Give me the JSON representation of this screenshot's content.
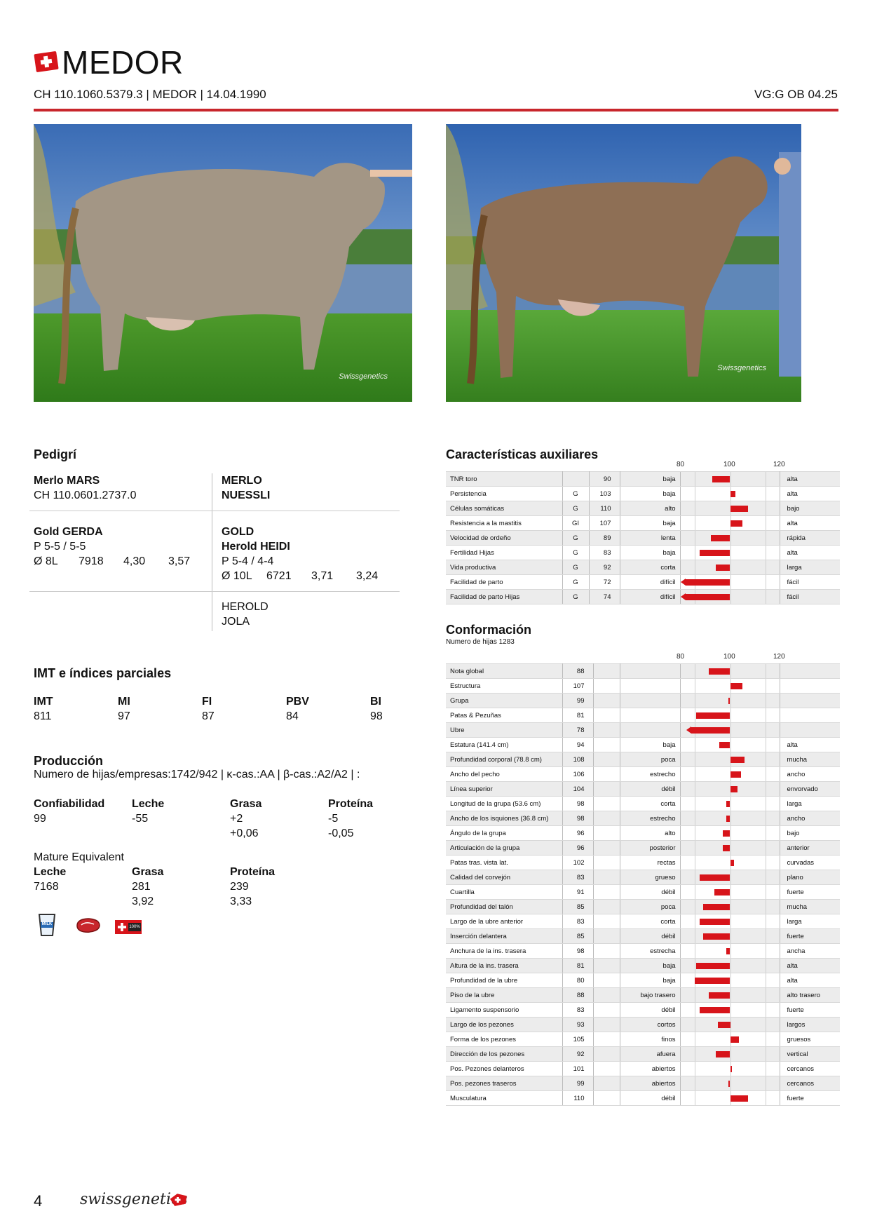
{
  "header": {
    "name": "MEDOR",
    "id_line": "CH 110.1060.5379.3 | MEDOR | 14.04.1990",
    "vg": "VG:G OB 04.25"
  },
  "photos": [
    {
      "watermark": "Swissgenetics"
    },
    {
      "watermark": "Swissgenetics"
    }
  ],
  "pedigree": {
    "title": "Pedigrí",
    "sire": {
      "name": "Merlo MARS",
      "id": "CH 110.0601.2737.0"
    },
    "sire_sire": {
      "line1": "MERLO",
      "line2": "NUESSLI"
    },
    "dam": {
      "name": "Gold GERDA",
      "score": "P 5-5 / 5-5",
      "lact": "Ø 8L",
      "milk": "7918",
      "fat": "4,30",
      "protein": "3,57"
    },
    "dam_sire": {
      "line1": "GOLD",
      "line2": "Herold HEIDI",
      "score": "P 5-4 / 4-4",
      "lact": "Ø 10L",
      "milk": "6721",
      "fat": "3,71",
      "protein": "3,24"
    },
    "dam_dam": {
      "line1": "HEROLD",
      "line2": "JOLA"
    }
  },
  "imt": {
    "title": "IMT e índices parciales",
    "items": [
      {
        "label": "IMT",
        "value": "811"
      },
      {
        "label": "MI",
        "value": "97"
      },
      {
        "label": "FI",
        "value": "87"
      },
      {
        "label": "PBV",
        "value": "84"
      },
      {
        "label": "BI",
        "value": "98"
      }
    ]
  },
  "production": {
    "title": "Producción",
    "subtitle": "Numero de hijas/empresas:1742/942 | κ-cas.:AA | β-cas.:A2/A2 | :",
    "headers": [
      "Confiabilidad",
      "Leche",
      "Grasa",
      "Proteína"
    ],
    "row1": [
      "99",
      "-55",
      "+2",
      "-5"
    ],
    "row2": [
      "",
      "",
      "+0,06",
      "-0,05"
    ],
    "mature_title": "Mature Equivalent",
    "mature_headers": [
      "Leche",
      "Grasa",
      "Proteína"
    ],
    "mature_row1": [
      "7168",
      "281",
      "239"
    ],
    "mature_row2": [
      "",
      "3,92",
      "3,33"
    ],
    "icon_milk_label": "MILK",
    "icon_swiss_label": "100%"
  },
  "aux": {
    "title": "Características auxiliares",
    "scale": [
      "80",
      "100",
      "120"
    ],
    "rows": [
      {
        "label": "TNR toro",
        "g": "",
        "value": 90,
        "low": "baja",
        "high": "alta"
      },
      {
        "label": "Persistencia",
        "g": "G",
        "value": 103,
        "low": "baja",
        "high": "alta"
      },
      {
        "label": "Células somáticas",
        "g": "G",
        "value": 110,
        "low": "alto",
        "high": "bajo"
      },
      {
        "label": "Resistencia a la mastitis",
        "g": "GI",
        "value": 107,
        "low": "baja",
        "high": "alta"
      },
      {
        "label": "Velocidad de ordeño",
        "g": "G",
        "value": 89,
        "low": "lenta",
        "high": "rápida"
      },
      {
        "label": "Fertilidad Hijas",
        "g": "G",
        "value": 83,
        "low": "baja",
        "high": "alta"
      },
      {
        "label": "Vida productiva",
        "g": "G",
        "value": 92,
        "low": "corta",
        "high": "larga"
      },
      {
        "label": "Facilidad de parto",
        "g": "G",
        "value": 72,
        "low": "difícil",
        "high": "fácil"
      },
      {
        "label": "Facilidad de parto Hijas",
        "g": "G",
        "value": 74,
        "low": "difícil",
        "high": "fácil"
      }
    ]
  },
  "conf": {
    "title": "Conformación",
    "subtitle": "Numero de hijas 1283",
    "scale": [
      "80",
      "100",
      "120"
    ],
    "rows": [
      {
        "label": "Nota global",
        "value": 88,
        "low": "",
        "high": ""
      },
      {
        "label": "Estructura",
        "value": 107,
        "low": "",
        "high": ""
      },
      {
        "label": "Grupa",
        "value": 99,
        "low": "",
        "high": ""
      },
      {
        "label": "Patas & Pezuñas",
        "value": 81,
        "low": "",
        "high": ""
      },
      {
        "label": "Ubre",
        "value": 78,
        "low": "",
        "high": ""
      },
      {
        "label": "Estatura (141.4 cm)",
        "value": 94,
        "low": "baja",
        "high": "alta"
      },
      {
        "label": "Profundidad corporal (78.8 cm)",
        "value": 108,
        "low": "poca",
        "high": "mucha"
      },
      {
        "label": "Ancho del pecho",
        "value": 106,
        "low": "estrecho",
        "high": "ancho"
      },
      {
        "label": "Línea superior",
        "value": 104,
        "low": "débil",
        "high": "envorvado"
      },
      {
        "label": "Longitud de la grupa (53.6 cm)",
        "value": 98,
        "low": "corta",
        "high": "larga"
      },
      {
        "label": "Ancho de los isquiones (36.8 cm)",
        "value": 98,
        "low": "estrecho",
        "high": "ancho"
      },
      {
        "label": "Ángulo de la grupa",
        "value": 96,
        "low": "alto",
        "high": "bajo"
      },
      {
        "label": "Articulación de la grupa",
        "value": 96,
        "low": "posterior",
        "high": "anterior"
      },
      {
        "label": "Patas tras. vista lat.",
        "value": 102,
        "low": "rectas",
        "high": "curvadas"
      },
      {
        "label": "Calidad del corvejón",
        "value": 83,
        "low": "grueso",
        "high": "plano"
      },
      {
        "label": "Cuartilla",
        "value": 91,
        "low": "débil",
        "high": "fuerte"
      },
      {
        "label": "Profundidad del talón",
        "value": 85,
        "low": "poca",
        "high": "mucha"
      },
      {
        "label": "Largo de la ubre anterior",
        "value": 83,
        "low": "corta",
        "high": "larga"
      },
      {
        "label": "Inserción delantera",
        "value": 85,
        "low": "débil",
        "high": "fuerte"
      },
      {
        "label": "Anchura de la ins. trasera",
        "value": 98,
        "low": "estrecha",
        "high": "ancha"
      },
      {
        "label": "Altura de la ins. trasera",
        "value": 81,
        "low": "baja",
        "high": "alta"
      },
      {
        "label": "Profundidad de la ubre",
        "value": 80,
        "low": "baja",
        "high": "alta"
      },
      {
        "label": "Piso de la ubre",
        "value": 88,
        "low": "bajo trasero",
        "high": "alto trasero"
      },
      {
        "label": "Ligamento suspensorio",
        "value": 83,
        "low": "débil",
        "high": "fuerte"
      },
      {
        "label": "Largo de los pezones",
        "value": 93,
        "low": "cortos",
        "high": "largos"
      },
      {
        "label": "Forma de los pezones",
        "value": 105,
        "low": "finos",
        "high": "gruesos"
      },
      {
        "label": "Dirección de los pezones",
        "value": 92,
        "low": "afuera",
        "high": "vertical"
      },
      {
        "label": "Pos. Pezones delanteros",
        "value": 101,
        "low": "abiertos",
        "high": "cercanos"
      },
      {
        "label": "Pos. pezones traseros",
        "value": 99,
        "low": "abiertos",
        "high": "cercanos"
      },
      {
        "label": "Musculatura",
        "value": 110,
        "low": "débil",
        "high": "fuerte"
      }
    ]
  },
  "footer": {
    "page": "4",
    "brand": "swissgenetics"
  },
  "colors": {
    "accent": "#d7141a",
    "rule": "#c8262c"
  }
}
